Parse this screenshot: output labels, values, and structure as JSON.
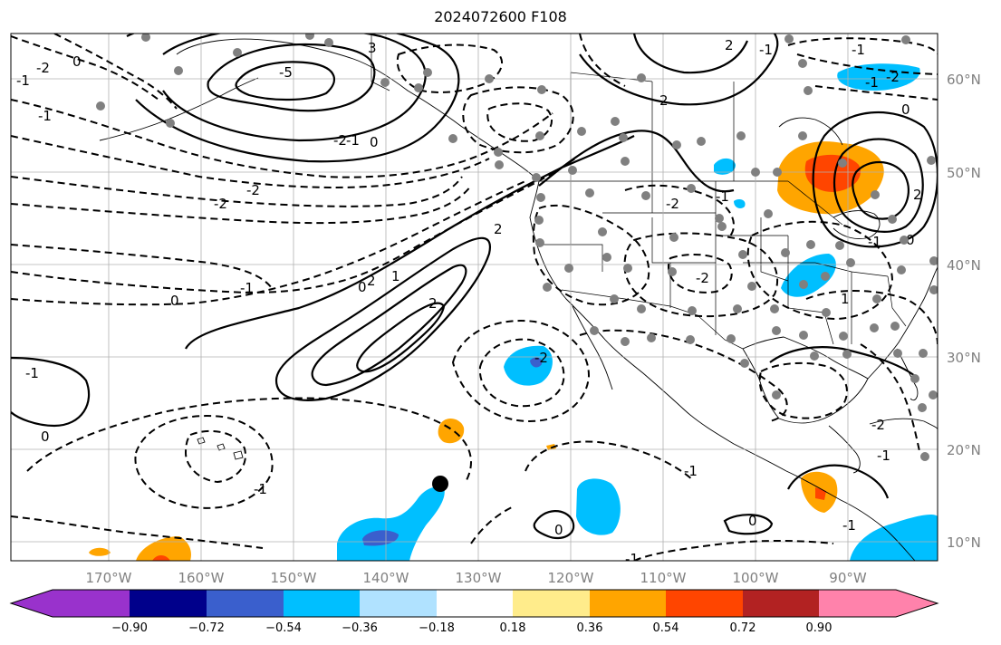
{
  "title": "2024072600 F108",
  "lon_labels": [
    "170°W",
    "160°W",
    "150°W",
    "140°W",
    "130°W",
    "120°W",
    "110°W",
    "100°W",
    "90°W"
  ],
  "lat_labels": [
    "60°N",
    "50°N",
    "40°N",
    "30°N",
    "20°N",
    "10°N"
  ],
  "colorbar": {
    "ticks": [
      "−0.90",
      "−0.72",
      "−0.54",
      "−0.36",
      "−0.18",
      "0.18",
      "0.36",
      "0.54",
      "0.72",
      "0.90"
    ],
    "colors": [
      "#9932CC",
      "#00008B",
      "#3A5FCD",
      "#00BFFF",
      "#B0E2FF",
      "#FFFFFF",
      "#FFEC8B",
      "#FFA500",
      "#FF4500",
      "#B22222",
      "#FF82AB"
    ]
  },
  "contour_labels": [
    "3",
    "-5",
    "-2",
    "-1",
    "-2",
    "-2",
    "-1",
    "0",
    "2",
    "-1",
    "0",
    "1",
    "2",
    "2",
    "-1",
    "-1",
    "0",
    "-2",
    "-1",
    "2",
    "-1",
    "0",
    "-2",
    "-1",
    "0",
    "-2",
    "-1",
    "0",
    "-2",
    "2",
    "-1",
    "1",
    "-1",
    "-1",
    "0",
    "-1",
    "0",
    "-1",
    "-2",
    "2",
    "0",
    "-1",
    "-2"
  ]
}
